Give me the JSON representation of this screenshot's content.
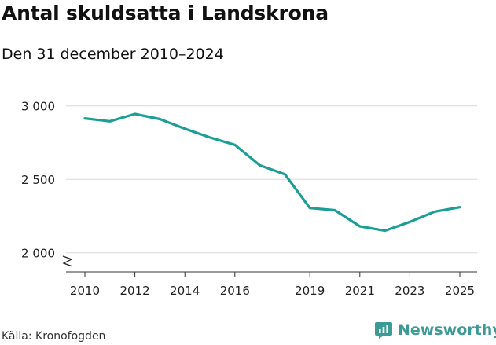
{
  "header": {
    "title": "Antal skuldsatta i Landskrona",
    "subtitle": "Den 31 december 2010–2024"
  },
  "footer": {
    "source": "Källa: Kronofogden",
    "brand": "Newsworthy",
    "brand_icon": "newsworthy-logo-icon"
  },
  "colors": {
    "line": "#1a9e96",
    "grid": "#d9d9d9",
    "brand": "#3d9b95"
  },
  "chart_data": {
    "type": "line",
    "title": "Antal skuldsatta i Landskrona",
    "subtitle": "Den 31 december 2010–2024",
    "xlabel": "",
    "ylabel": "",
    "x": [
      2010,
      2011,
      2012,
      2013,
      2014,
      2015,
      2016,
      2017,
      2018,
      2019,
      2020,
      2021,
      2022,
      2023,
      2024,
      2025
    ],
    "series": [
      {
        "name": "Antal skuldsatta",
        "values": [
          2915,
          2895,
          2945,
          2910,
          2845,
          2785,
          2735,
          2595,
          2535,
          2305,
          2290,
          2180,
          2150,
          2210,
          2280,
          2310
        ]
      }
    ],
    "ylim": [
      1870,
      3100
    ],
    "yticks": [
      2000,
      2500,
      3000
    ],
    "ytick_labels": [
      "2 000",
      "2 500",
      "3 000"
    ],
    "xticks": [
      2010,
      2012,
      2014,
      2016,
      2019,
      2021,
      2023,
      2025
    ],
    "xtick_labels": [
      "2010",
      "2012",
      "2014",
      "2016",
      "2019",
      "2021",
      "2023",
      "2025"
    ],
    "grid": true,
    "axis_break": true
  }
}
